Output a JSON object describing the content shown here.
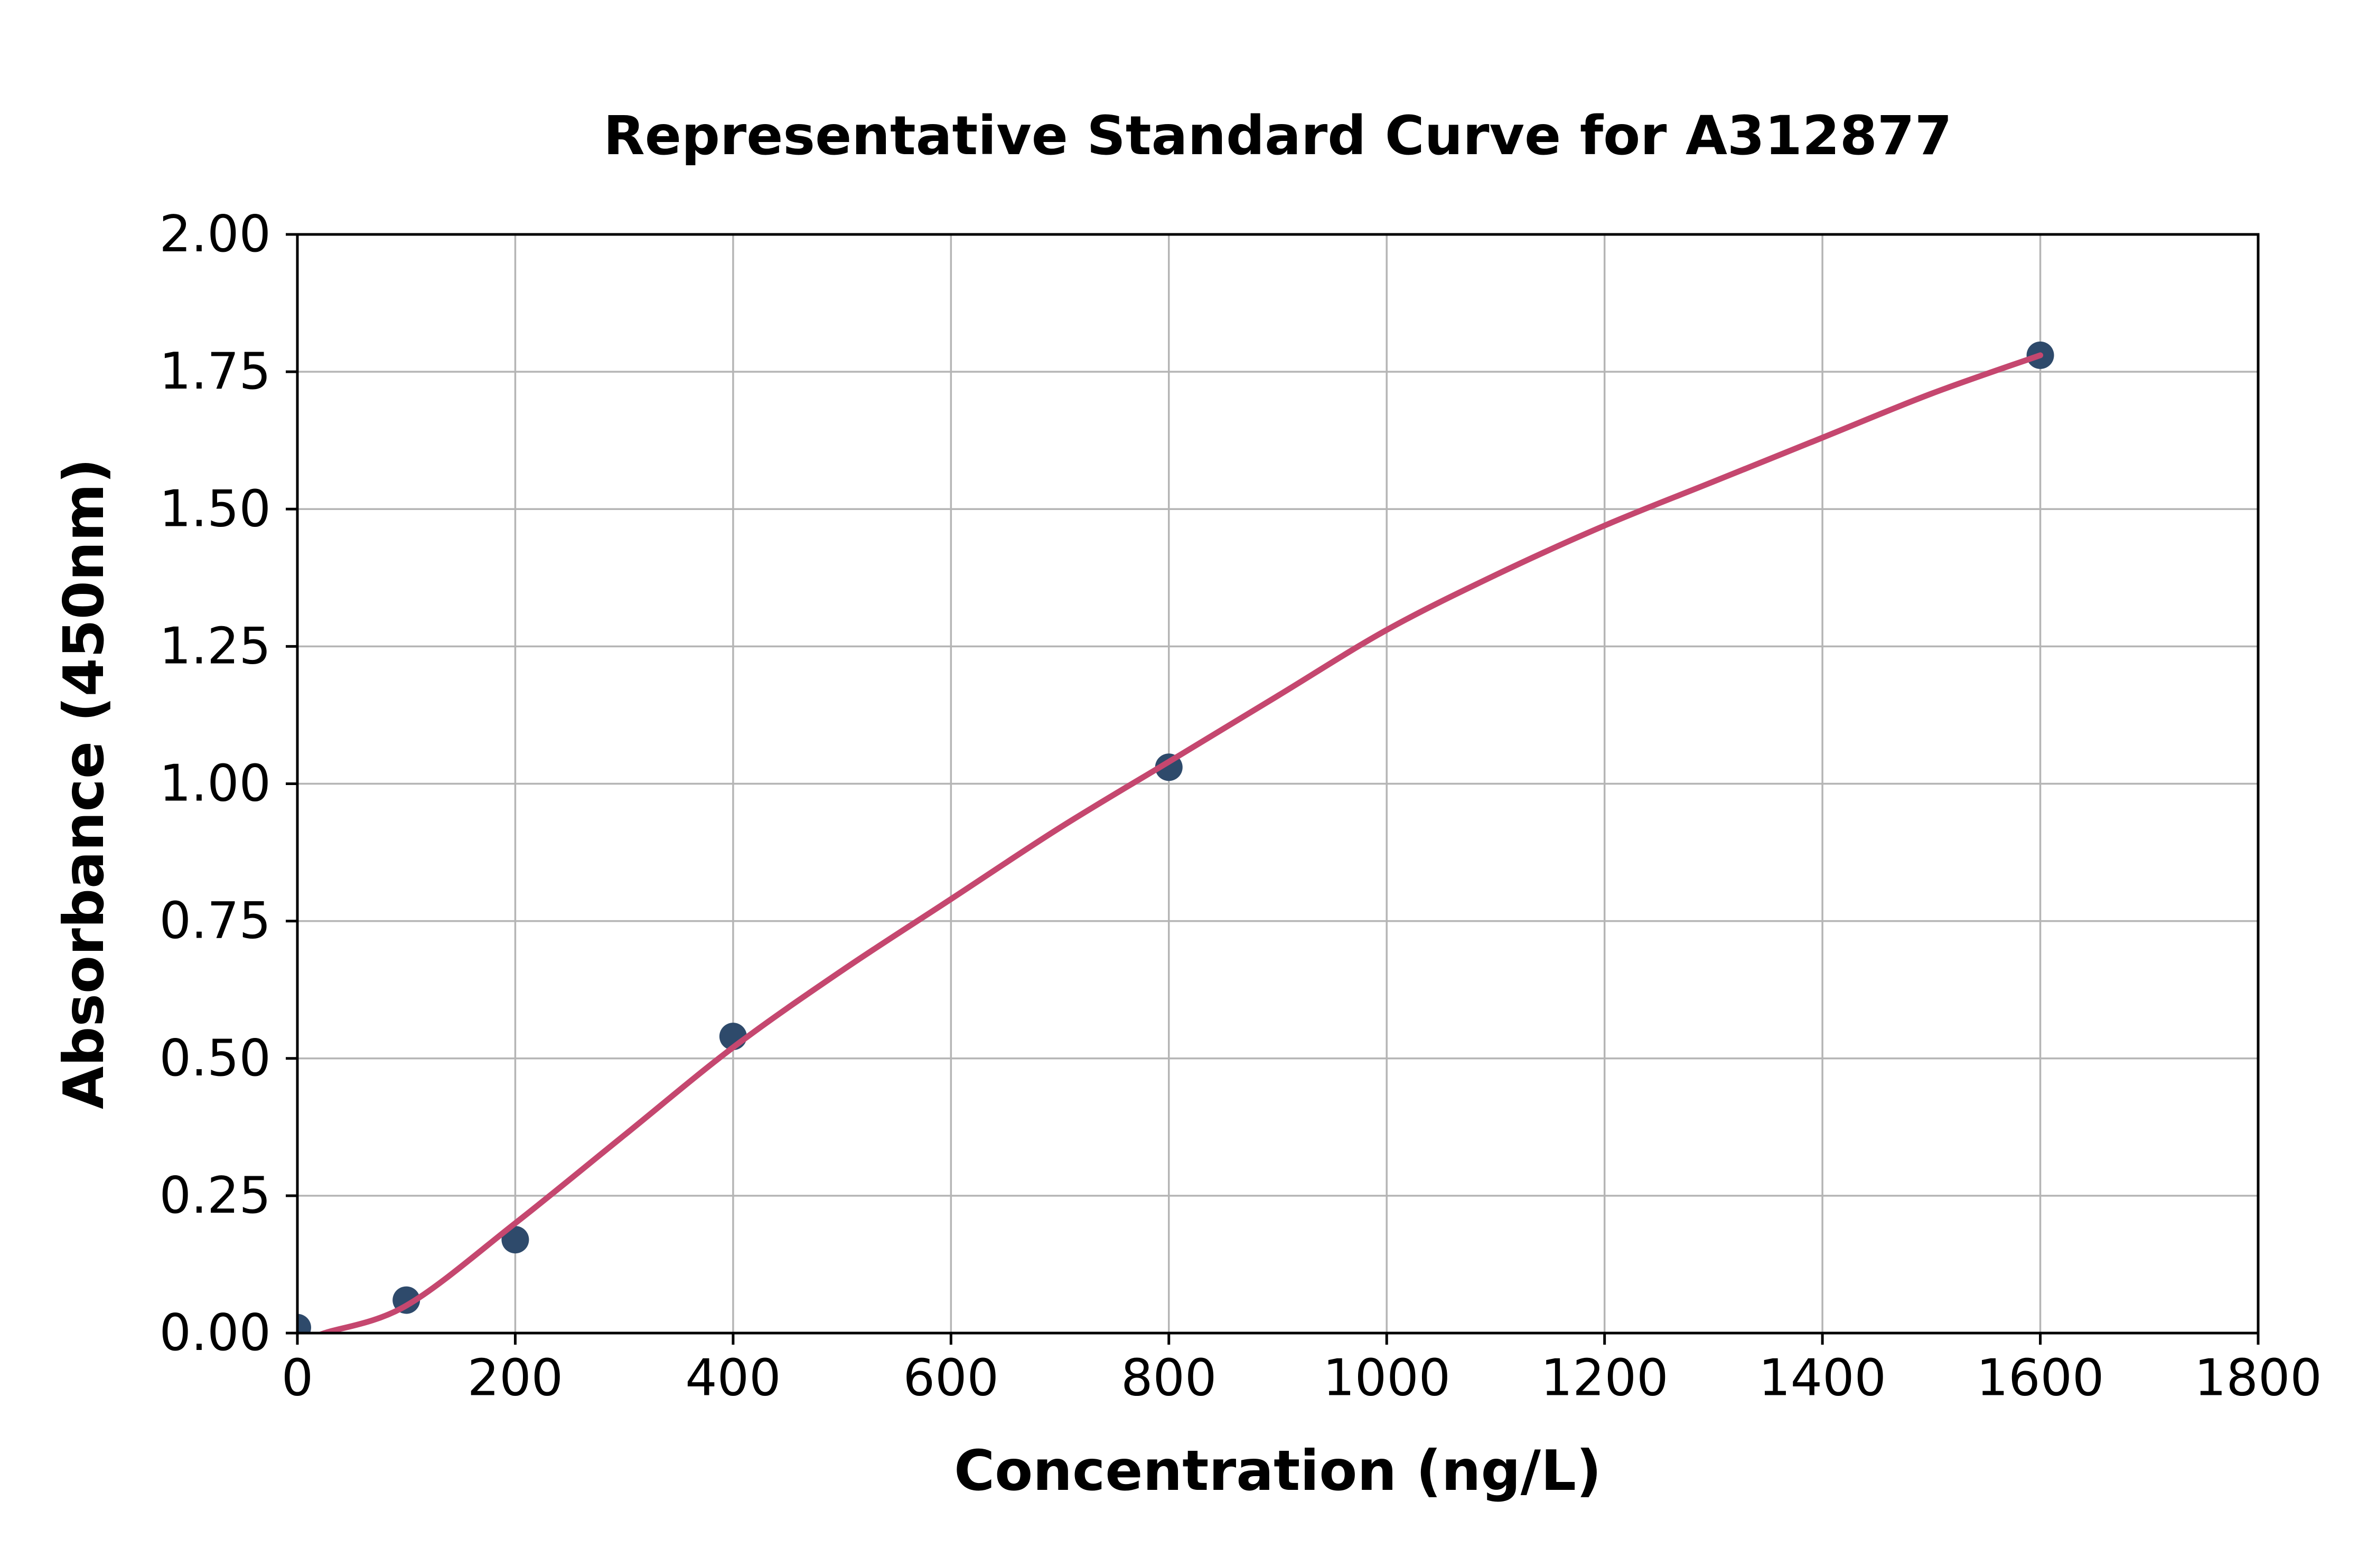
{
  "figure": {
    "background": "#ffffff"
  },
  "chart_data": {
    "type": "scatter",
    "title": "Representative Standard Curve for A312877",
    "xlabel": "Concentration (ng/L)",
    "ylabel": "Absorbance (450nm)",
    "xlim": [
      0,
      1800
    ],
    "ylim": [
      0.0,
      2.0
    ],
    "xticks": [
      0,
      200,
      400,
      600,
      800,
      1000,
      1200,
      1400,
      1600,
      1800
    ],
    "xtick_labels": [
      "0",
      "200",
      "400",
      "600",
      "800",
      "1000",
      "1200",
      "1400",
      "1600",
      "1800"
    ],
    "yticks": [
      0.0,
      0.25,
      0.5,
      0.75,
      1.0,
      1.25,
      1.5,
      1.75,
      2.0
    ],
    "ytick_labels": [
      "0.00",
      "0.25",
      "0.50",
      "0.75",
      "1.00",
      "1.25",
      "1.50",
      "1.75",
      "2.00"
    ],
    "grid": true,
    "legend": "none",
    "series": [
      {
        "name": "standards",
        "kind": "scatter",
        "x": [
          0,
          100,
          200,
          400,
          800,
          1600
        ],
        "y": [
          0.01,
          0.06,
          0.17,
          0.54,
          1.03,
          1.78
        ]
      },
      {
        "name": "fit-curve",
        "kind": "line",
        "x": [
          10,
          25,
          100,
          200,
          300,
          400,
          500,
          600,
          700,
          800,
          900,
          1000,
          1100,
          1200,
          1300,
          1400,
          1500,
          1600
        ],
        "y": [
          -0.012,
          0.0,
          0.05,
          0.2,
          0.36,
          0.52,
          0.66,
          0.79,
          0.92,
          1.04,
          1.16,
          1.28,
          1.38,
          1.47,
          1.55,
          1.63,
          1.71,
          1.78
        ]
      }
    ],
    "colors": {
      "point": "#2E4A6B",
      "curve": "#C5476F",
      "grid": "#B5B5B5",
      "spine": "#000000",
      "text": "#000000",
      "background": "#FFFFFF"
    }
  }
}
